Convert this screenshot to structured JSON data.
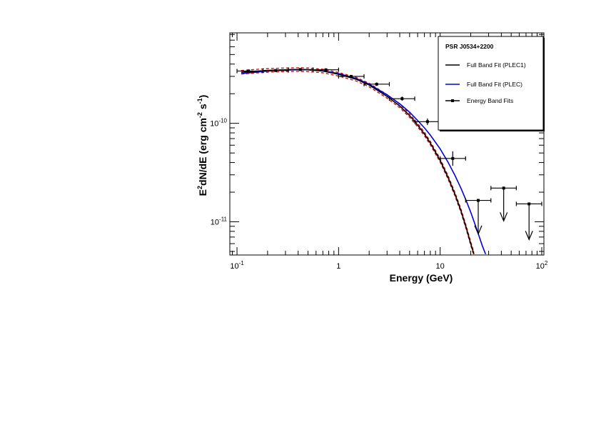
{
  "chart_data": {
    "type": "line",
    "title": "",
    "xlabel": "Energy (GeV)",
    "ylabel": "E²dN/dE (erg cm⁻² s⁻¹)",
    "ylabel_parts": [
      "E",
      "2",
      "dN/dE (erg cm",
      "-2",
      " s",
      "-1",
      ")"
    ],
    "x_scale": "log",
    "y_scale": "log",
    "xlim": [
      0.085,
      105
    ],
    "ylim": [
      4.6e-12,
      8.3e-10
    ],
    "grid": false,
    "x_ticks": [
      {
        "value": 0.1,
        "base": "10",
        "exp": "-1"
      },
      {
        "value": 1,
        "label": "1"
      },
      {
        "value": 10,
        "label": "10"
      },
      {
        "value": 100,
        "base": "10",
        "exp": "2"
      }
    ],
    "y_ticks": [
      {
        "value": 1e-11,
        "base": "10",
        "exp": "-11"
      },
      {
        "value": 1e-10,
        "base": "10",
        "exp": "-10"
      }
    ],
    "legend": {
      "placement": "top-right",
      "title": "PSR J0534+2200",
      "entries": [
        {
          "label": "Full Band Fit (PLEC1)",
          "color": "#000000",
          "style": "line"
        },
        {
          "label": "Full Band Fit (PLEC)",
          "color": "#0000dd",
          "style": "line"
        },
        {
          "label": "Energy Band Fits",
          "color": "#000000",
          "style": "errorbar-marker"
        }
      ]
    },
    "series": [
      {
        "name": "Full Band Fit (PLEC1)",
        "color": "#000000",
        "band_color": "#cc0000",
        "x": [
          0.11,
          0.15,
          0.2,
          0.3,
          0.4,
          0.5,
          0.7,
          1.0,
          1.5,
          2.0,
          3.0,
          4.0,
          5.0,
          6.0,
          7.0,
          8.0,
          10.0,
          12.0,
          14.0,
          16.0,
          18.0,
          20.0,
          21.5
        ],
        "y": [
          3.3e-10,
          3.38e-10,
          3.45e-10,
          3.5e-10,
          3.52e-10,
          3.5e-10,
          3.4e-10,
          3.15e-10,
          2.8e-10,
          2.45e-10,
          1.88e-10,
          1.5e-10,
          1.2e-10,
          9.6e-11,
          7.8e-11,
          6.3e-11,
          4.2e-11,
          2.8e-11,
          1.9e-11,
          1.3e-11,
          8.8e-12,
          6e-12,
          4.7e-12
        ]
      },
      {
        "name": "Full Band Fit (PLEC)",
        "color": "#0000dd",
        "x": [
          0.11,
          0.15,
          0.2,
          0.3,
          0.4,
          0.5,
          0.7,
          1.0,
          1.5,
          2.0,
          3.0,
          4.0,
          5.0,
          6.0,
          7.0,
          8.0,
          10.0,
          12.0,
          14.0,
          16.0,
          18.0,
          20.0,
          23.0,
          26.0,
          28.0
        ],
        "y": [
          3.2e-10,
          3.3e-10,
          3.4e-10,
          3.48e-10,
          3.5e-10,
          3.5e-10,
          3.42e-10,
          3.2e-10,
          2.85e-10,
          2.5e-10,
          1.95e-10,
          1.58e-10,
          1.3e-10,
          1.07e-10,
          9e-11,
          7.6e-11,
          5.5e-11,
          4e-11,
          2.95e-11,
          2.2e-11,
          1.65e-11,
          1.25e-11,
          8.3e-12,
          5.7e-12,
          4.7e-12
        ]
      },
      {
        "name": "Energy Band Fits",
        "type": "errorbar",
        "points": [
          {
            "x": 0.13,
            "xlo": 0.1,
            "xhi": 0.18,
            "y": 3.4e-10,
            "ylo": 3.3e-10,
            "yhi": 3.5e-10
          },
          {
            "x": 0.24,
            "xlo": 0.18,
            "xhi": 0.32,
            "y": 3.44e-10,
            "ylo": 3.36e-10,
            "yhi": 3.52e-10
          },
          {
            "x": 0.42,
            "xlo": 0.32,
            "xhi": 0.56,
            "y": 3.52e-10,
            "ylo": 3.44e-10,
            "yhi": 3.6e-10
          },
          {
            "x": 0.75,
            "xlo": 0.56,
            "xhi": 1.0,
            "y": 3.5e-10,
            "ylo": 3.42e-10,
            "yhi": 3.58e-10
          },
          {
            "x": 1.33,
            "xlo": 1.0,
            "xhi": 1.78,
            "y": 3e-10,
            "ylo": 2.9e-10,
            "yhi": 3.1e-10
          },
          {
            "x": 2.37,
            "xlo": 1.78,
            "xhi": 3.16,
            "y": 2.5e-10,
            "ylo": 2.4e-10,
            "yhi": 2.6e-10
          },
          {
            "x": 4.22,
            "xlo": 3.16,
            "xhi": 5.62,
            "y": 1.78e-10,
            "ylo": 1.7e-10,
            "yhi": 1.87e-10
          },
          {
            "x": 7.5,
            "xlo": 5.62,
            "xhi": 10.0,
            "y": 1.04e-10,
            "ylo": 9.6e-11,
            "yhi": 1.12e-10
          },
          {
            "x": 13.3,
            "xlo": 10.0,
            "xhi": 17.8,
            "y": 4.4e-11,
            "ylo": 3.7e-11,
            "yhi": 5.2e-11
          }
        ]
      },
      {
        "name": "Energy Band Fits upper limits",
        "type": "upperlimit",
        "points": [
          {
            "x": 23.7,
            "xlo": 17.8,
            "xhi": 31.6,
            "y": 1.65e-11,
            "arrow_to": 7.5e-12
          },
          {
            "x": 42.2,
            "xlo": 31.6,
            "xhi": 56.2,
            "y": 2.2e-11,
            "arrow_to": 1.02e-11
          },
          {
            "x": 75.0,
            "xlo": 56.2,
            "xhi": 100.0,
            "y": 1.52e-11,
            "arrow_to": 6.6e-12
          }
        ]
      }
    ]
  }
}
